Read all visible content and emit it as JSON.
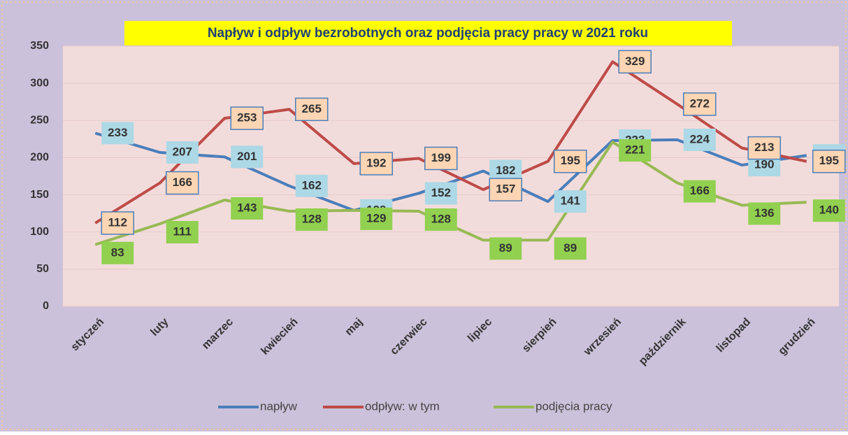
{
  "chart_data": {
    "type": "line",
    "title": "Napływ i odpływ bezrobotnych oraz podjęcia pracy pracy w 2021 roku",
    "categories": [
      "styczeń",
      "luty",
      "marzec",
      "kwiecień",
      "maj",
      "czerwiec",
      "lipiec",
      "sierpień",
      "wrzesień",
      "październik",
      "listopad",
      "grudzień"
    ],
    "series": [
      {
        "name": "napływ",
        "color": "#4a7ebb",
        "values": [
          233,
          207,
          201,
          162,
          129,
          152,
          182,
          141,
          223,
          224,
          190,
          203
        ]
      },
      {
        "name": "odpływ: w tym",
        "color": "#be4b48",
        "values": [
          112,
          166,
          253,
          265,
          192,
          199,
          157,
          195,
          329,
          272,
          213,
          195
        ]
      },
      {
        "name": "podjęcia pracy",
        "color": "#98b954",
        "values": [
          83,
          111,
          143,
          128,
          129,
          128,
          89,
          89,
          221,
          166,
          136,
          140
        ]
      }
    ],
    "ylim": [
      0,
      350
    ],
    "yticks": [
      0,
      50,
      100,
      150,
      200,
      250,
      300,
      350
    ],
    "grid": true,
    "legend": "bottom"
  }
}
